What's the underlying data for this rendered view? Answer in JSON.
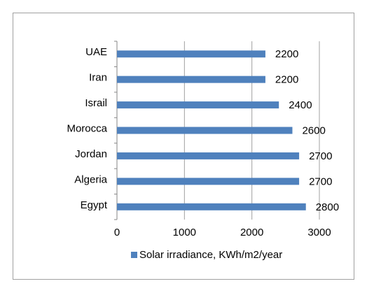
{
  "chart_data": {
    "type": "bar",
    "orientation": "horizontal",
    "categories": [
      "UAE",
      "Iran",
      "Israil",
      "Morocca",
      "Jordan",
      "Algeria",
      "Egypt"
    ],
    "series": [
      {
        "name": "Solar irradiance, KWh/m2/year",
        "color": "#4f81bd",
        "values": [
          2200,
          2200,
          2400,
          2600,
          2700,
          2700,
          2800
        ]
      }
    ],
    "xlim": [
      0,
      3000
    ],
    "xticks": [
      0,
      1000,
      2000,
      3000
    ],
    "grid": true,
    "legend": "bottom"
  }
}
